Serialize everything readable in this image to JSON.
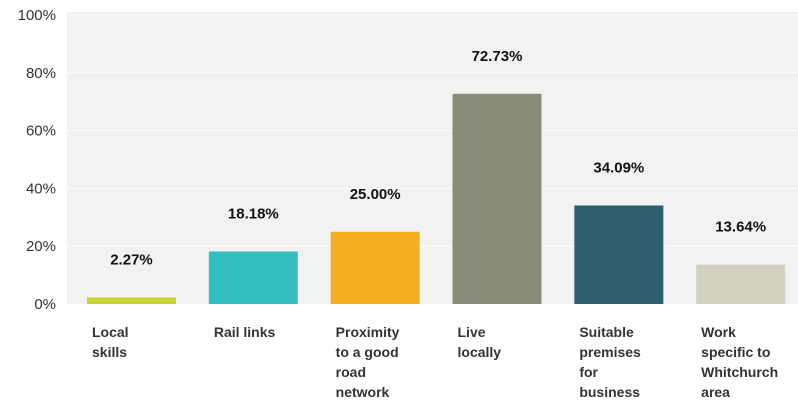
{
  "chart_data": {
    "type": "bar",
    "categories": [
      [
        "Local",
        "skills"
      ],
      [
        "Rail links"
      ],
      [
        "Proximity",
        "to a good",
        "road",
        "network"
      ],
      [
        "Live",
        "locally"
      ],
      [
        "Suitable",
        "premises",
        "for",
        "business"
      ],
      [
        "Work",
        "specific to",
        "Whitchurch",
        "area"
      ]
    ],
    "values": [
      2.27,
      18.18,
      25.0,
      72.73,
      34.09,
      13.64
    ],
    "data_labels": [
      "2.27%",
      "18.18%",
      "25.00%",
      "72.73%",
      "34.09%",
      "13.64%"
    ],
    "colors": [
      "#c8d42f",
      "#34bec0",
      "#f6ad20",
      "#8a8b79",
      "#2f5f6e",
      "#d1d0c1"
    ],
    "yticks": [
      "0%",
      "20%",
      "40%",
      "60%",
      "80%",
      "100%"
    ],
    "ytick_values": [
      0,
      20,
      40,
      60,
      80,
      100
    ],
    "ylim": [
      0,
      100
    ],
    "grid": true,
    "plot_background": "#f2f2f2",
    "gridline_color": "#ffffff"
  }
}
